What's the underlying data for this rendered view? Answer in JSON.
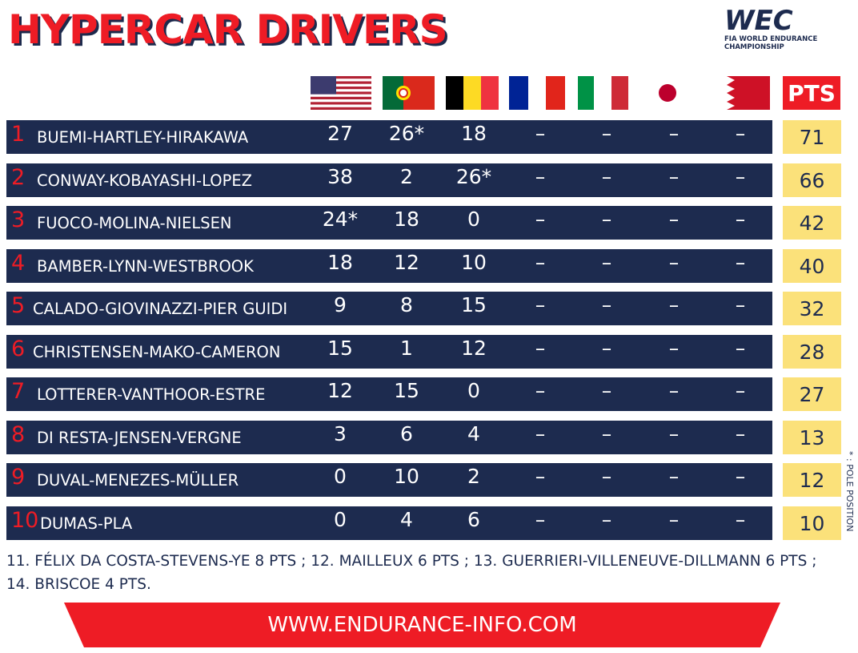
{
  "header": {
    "title": "HYPERCAR DRIVERS",
    "logo": {
      "mark": "WEC",
      "line1": "FIA WORLD ENDURANCE",
      "line2": "CHAMPIONSHIP"
    },
    "points_label": "PTS"
  },
  "table": {
    "rows": [
      {
        "pos": "1",
        "drivers": "BUEMI-HARTLEY-HIRAKAWA",
        "results": [
          "27",
          "26*",
          "18",
          "–",
          "–",
          "–",
          "–"
        ],
        "pts": "71"
      },
      {
        "pos": "2",
        "drivers": "CONWAY-KOBAYASHI-LOPEZ",
        "results": [
          "38",
          "2",
          "26*",
          "–",
          "–",
          "–",
          "–"
        ],
        "pts": "66"
      },
      {
        "pos": "3",
        "drivers": "FUOCO-MOLINA-NIELSEN",
        "results": [
          "24*",
          "18",
          "0",
          "–",
          "–",
          "–",
          "–"
        ],
        "pts": "42"
      },
      {
        "pos": "4",
        "drivers": "BAMBER-LYNN-WESTBROOK",
        "results": [
          "18",
          "12",
          "10",
          "–",
          "–",
          "–",
          "–"
        ],
        "pts": "40"
      },
      {
        "pos": "5",
        "drivers": "CALADO-GIOVINAZZI-PIER GUIDI",
        "results": [
          "9",
          "8",
          "15",
          "–",
          "–",
          "–",
          "–"
        ],
        "pts": "32"
      },
      {
        "pos": "6",
        "drivers": "CHRISTENSEN-MAKO-CAMERON",
        "results": [
          "15",
          "1",
          "12",
          "–",
          "–",
          "–",
          "–"
        ],
        "pts": "28"
      },
      {
        "pos": "7",
        "drivers": "LOTTERER-VANTHOOR-ESTRE",
        "results": [
          "12",
          "15",
          "0",
          "–",
          "–",
          "–",
          "–"
        ],
        "pts": "27"
      },
      {
        "pos": "8",
        "drivers": "DI RESTA-JENSEN-VERGNE",
        "results": [
          "3",
          "6",
          "4",
          "–",
          "–",
          "–",
          "–"
        ],
        "pts": "13"
      },
      {
        "pos": "9",
        "drivers": "DUVAL-MENEZES-MÜLLER",
        "results": [
          "0",
          "10",
          "2",
          "–",
          "–",
          "–",
          "–"
        ],
        "pts": "12"
      },
      {
        "pos": "10",
        "drivers": "DUMAS-PLA",
        "results": [
          "0",
          "4",
          "6",
          "–",
          "–",
          "–",
          "–"
        ],
        "pts": "10"
      }
    ]
  },
  "legend": "* : POLE POSITION",
  "footnote": "11. FÉLIX DA COSTA-STEVENS-YE 8 PTS ; 12. MAILLEUX 6 PTS ; 13. GUERRIERI-VILLENEUVE-DILLMANN 6 PTS ; 14. BRISCOE 4 PTS.",
  "website": "WWW.ENDURANCE-INFO.COM"
}
